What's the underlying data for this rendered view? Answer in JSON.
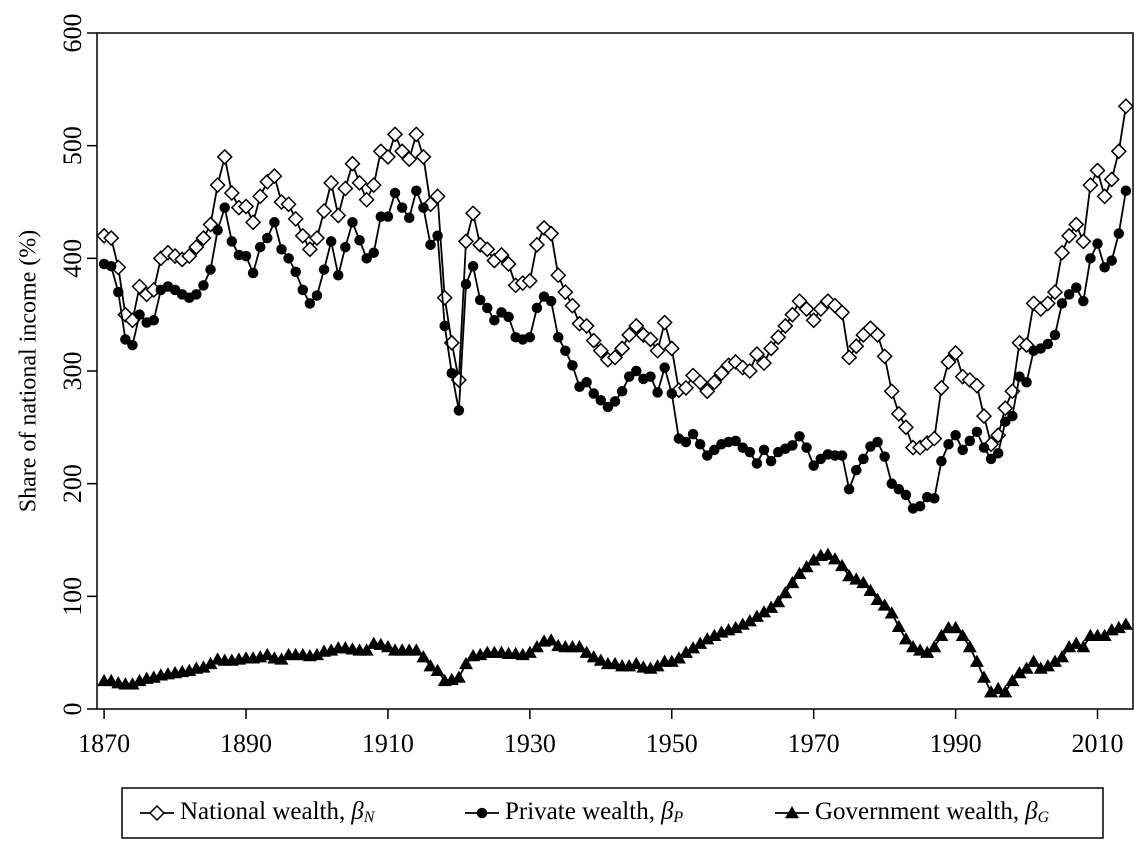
{
  "chart_data": {
    "type": "line",
    "y_label": "Share of national income (%)",
    "x": [
      1870,
      1871,
      1872,
      1873,
      1874,
      1875,
      1876,
      1877,
      1878,
      1879,
      1880,
      1881,
      1882,
      1883,
      1884,
      1885,
      1886,
      1887,
      1888,
      1889,
      1890,
      1891,
      1892,
      1893,
      1894,
      1895,
      1896,
      1897,
      1898,
      1899,
      1900,
      1901,
      1902,
      1903,
      1904,
      1905,
      1906,
      1907,
      1908,
      1909,
      1910,
      1911,
      1912,
      1913,
      1914,
      1915,
      1916,
      1917,
      1918,
      1919,
      1920,
      1921,
      1922,
      1923,
      1924,
      1925,
      1926,
      1927,
      1928,
      1929,
      1930,
      1931,
      1932,
      1933,
      1934,
      1935,
      1936,
      1937,
      1938,
      1939,
      1940,
      1941,
      1942,
      1943,
      1944,
      1945,
      1946,
      1947,
      1948,
      1949,
      1950,
      1951,
      1952,
      1953,
      1954,
      1955,
      1956,
      1957,
      1958,
      1959,
      1960,
      1961,
      1962,
      1963,
      1964,
      1965,
      1966,
      1967,
      1968,
      1969,
      1970,
      1971,
      1972,
      1973,
      1974,
      1975,
      1976,
      1977,
      1978,
      1979,
      1980,
      1981,
      1982,
      1983,
      1984,
      1985,
      1986,
      1987,
      1988,
      1989,
      1990,
      1991,
      1992,
      1993,
      1994,
      1995,
      1996,
      1997,
      1998,
      1999,
      2000,
      2001,
      2002,
      2003,
      2004,
      2005,
      2006,
      2007,
      2008,
      2009,
      2010,
      2011,
      2012,
      2013,
      2014
    ],
    "xlim": [
      1869,
      2015
    ],
    "xticks": [
      1870,
      1890,
      1910,
      1930,
      1950,
      1970,
      1990,
      2010
    ],
    "ylim": [
      0,
      600
    ],
    "yticks": [
      0,
      100,
      200,
      300,
      400,
      500,
      600
    ],
    "series": [
      {
        "name": "National wealth,",
        "symbol": "β",
        "subscript": "N",
        "color": "#000000",
        "marker": "diamond-open",
        "values": [
          420,
          418,
          392,
          350,
          345,
          375,
          368,
          372,
          400,
          405,
          402,
          399,
          402,
          410,
          418,
          430,
          465,
          490,
          458,
          445,
          446,
          432,
          455,
          468,
          473,
          450,
          448,
          435,
          420,
          408,
          418,
          442,
          467,
          438,
          462,
          484,
          467,
          452,
          465,
          495,
          490,
          510,
          495,
          488,
          510,
          490,
          448,
          455,
          365,
          325,
          292,
          415,
          440,
          412,
          408,
          398,
          403,
          395,
          376,
          378,
          380,
          412,
          427,
          422,
          385,
          370,
          358,
          342,
          340,
          327,
          318,
          310,
          312,
          320,
          332,
          340,
          332,
          328,
          318,
          343,
          320,
          283,
          285,
          296,
          290,
          282,
          290,
          298,
          305,
          308,
          303,
          300,
          315,
          307,
          320,
          330,
          340,
          350,
          362,
          355,
          345,
          355,
          362,
          358,
          352,
          312,
          322,
          332,
          338,
          332,
          313,
          282,
          262,
          250,
          232,
          232,
          236,
          240,
          285,
          308,
          316,
          295,
          292,
          287,
          260,
          235,
          243,
          267,
          282,
          325,
          323,
          360,
          355,
          360,
          370,
          405,
          420,
          430,
          415,
          465,
          478,
          455,
          470,
          495,
          535
        ]
      },
      {
        "name": "Private wealth,",
        "symbol": "β",
        "subscript": "P",
        "color": "#000000",
        "marker": "circle",
        "values": [
          395,
          393,
          370,
          328,
          323,
          350,
          343,
          345,
          372,
          375,
          372,
          368,
          365,
          368,
          376,
          390,
          425,
          445,
          415,
          403,
          402,
          387,
          410,
          418,
          432,
          408,
          400,
          388,
          372,
          360,
          367,
          390,
          415,
          385,
          410,
          432,
          416,
          400,
          405,
          437,
          437,
          458,
          445,
          436,
          460,
          445,
          412,
          420,
          340,
          298,
          265,
          377,
          393,
          363,
          356,
          345,
          352,
          348,
          330,
          328,
          330,
          356,
          366,
          362,
          330,
          318,
          305,
          286,
          290,
          280,
          274,
          268,
          273,
          282,
          295,
          300,
          293,
          295,
          281,
          303,
          280,
          240,
          237,
          244,
          235,
          225,
          230,
          235,
          237,
          238,
          232,
          228,
          218,
          230,
          220,
          228,
          231,
          234,
          242,
          232,
          216,
          222,
          226,
          225,
          225,
          195,
          212,
          222,
          233,
          237,
          224,
          200,
          195,
          190,
          178,
          180,
          188,
          187,
          220,
          235,
          243,
          230,
          238,
          246,
          232,
          222,
          227,
          255,
          260,
          295,
          290,
          318,
          320,
          324,
          332,
          360,
          368,
          374,
          362,
          400,
          413,
          392,
          398,
          422,
          460
        ]
      },
      {
        "name": "Government wealth,",
        "symbol": "β",
        "subscript": "G",
        "color": "#000000",
        "marker": "triangle",
        "values": [
          25,
          25,
          23,
          22,
          22,
          25,
          27,
          28,
          30,
          31,
          32,
          33,
          34,
          36,
          37,
          40,
          44,
          43,
          43,
          44,
          45,
          45,
          46,
          48,
          45,
          44,
          48,
          48,
          48,
          47,
          48,
          51,
          52,
          54,
          54,
          53,
          52,
          52,
          58,
          57,
          55,
          52,
          52,
          52,
          52,
          46,
          38,
          34,
          25,
          26,
          28,
          40,
          47,
          48,
          50,
          50,
          50,
          49,
          49,
          48,
          50,
          55,
          60,
          61,
          56,
          55,
          55,
          55,
          50,
          46,
          43,
          40,
          40,
          38,
          38,
          40,
          37,
          36,
          38,
          42,
          42,
          45,
          50,
          54,
          58,
          62,
          65,
          68,
          70,
          72,
          75,
          78,
          82,
          86,
          90,
          95,
          103,
          112,
          120,
          126,
          132,
          136,
          137,
          133,
          127,
          118,
          115,
          112,
          105,
          97,
          92,
          85,
          73,
          62,
          55,
          52,
          50,
          55,
          65,
          72,
          72,
          65,
          55,
          42,
          28,
          15,
          18,
          15,
          25,
          32,
          36,
          42,
          36,
          38,
          42,
          46,
          55,
          58,
          55,
          65,
          65,
          65,
          70,
          72,
          75
        ]
      }
    ]
  }
}
